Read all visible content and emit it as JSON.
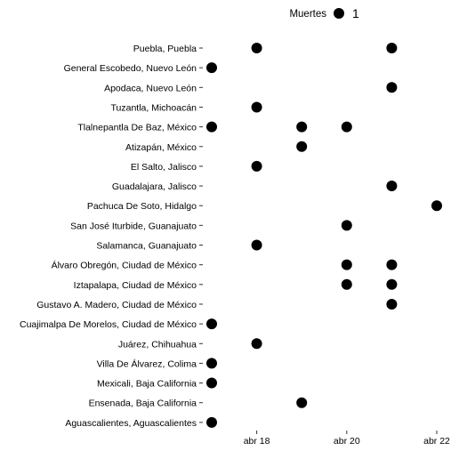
{
  "chart_data": {
    "type": "scatter",
    "legend": {
      "title": "Muertes",
      "entries": [
        "1"
      ],
      "position": "top"
    },
    "categories": [
      "Puebla, Puebla",
      "General Escobedo, Nuevo León",
      "Apodaca, Nuevo León",
      "Tuzantla, Michoacán",
      "Tlalnepantla De Baz, México",
      "Atizapán, México",
      "El Salto, Jalisco",
      "Guadalajara, Jalisco",
      "Pachuca De Soto, Hidalgo",
      "San José Iturbide, Guanajuato",
      "Salamanca, Guanajuato",
      "Álvaro Obregón, Ciudad de México",
      "Iztapalapa, Ciudad de México",
      "Gustavo A. Madero, Ciudad de México",
      "Cuajimalpa De Morelos, Ciudad de México",
      "Juárez, Chihuahua",
      "Villa De Álvarez, Colima",
      "Mexicali, Baja California",
      "Ensenada, Baja California",
      "Aguascalientes, Aguascalientes"
    ],
    "x_ticks": [
      {
        "value": "2021-04-18",
        "label": "abr 18"
      },
      {
        "value": "2021-04-20",
        "label": "abr 20"
      },
      {
        "value": "2021-04-22",
        "label": "abr 22"
      }
    ],
    "xlim": [
      "2021-04-17",
      "2021-04-22"
    ],
    "points": [
      {
        "city": "Puebla, Puebla",
        "date": "2021-04-18",
        "deaths": 1
      },
      {
        "city": "Puebla, Puebla",
        "date": "2021-04-21",
        "deaths": 1
      },
      {
        "city": "General Escobedo, Nuevo León",
        "date": "2021-04-17",
        "deaths": 1
      },
      {
        "city": "Apodaca, Nuevo León",
        "date": "2021-04-21",
        "deaths": 1
      },
      {
        "city": "Tuzantla, Michoacán",
        "date": "2021-04-18",
        "deaths": 1
      },
      {
        "city": "Tlalnepantla De Baz, México",
        "date": "2021-04-17",
        "deaths": 1
      },
      {
        "city": "Tlalnepantla De Baz, México",
        "date": "2021-04-19",
        "deaths": 1
      },
      {
        "city": "Tlalnepantla De Baz, México",
        "date": "2021-04-20",
        "deaths": 1
      },
      {
        "city": "Atizapán, México",
        "date": "2021-04-19",
        "deaths": 1
      },
      {
        "city": "El Salto, Jalisco",
        "date": "2021-04-18",
        "deaths": 1
      },
      {
        "city": "Guadalajara, Jalisco",
        "date": "2021-04-21",
        "deaths": 1
      },
      {
        "city": "Pachuca De Soto, Hidalgo",
        "date": "2021-04-22",
        "deaths": 1
      },
      {
        "city": "San José Iturbide, Guanajuato",
        "date": "2021-04-20",
        "deaths": 1
      },
      {
        "city": "Salamanca, Guanajuato",
        "date": "2021-04-18",
        "deaths": 1
      },
      {
        "city": "Álvaro Obregón, Ciudad de México",
        "date": "2021-04-20",
        "deaths": 1
      },
      {
        "city": "Álvaro Obregón, Ciudad de México",
        "date": "2021-04-21",
        "deaths": 1
      },
      {
        "city": "Iztapalapa, Ciudad de México",
        "date": "2021-04-20",
        "deaths": 1
      },
      {
        "city": "Iztapalapa, Ciudad de México",
        "date": "2021-04-21",
        "deaths": 1
      },
      {
        "city": "Gustavo A. Madero, Ciudad de México",
        "date": "2021-04-21",
        "deaths": 1
      },
      {
        "city": "Cuajimalpa De Morelos, Ciudad de México",
        "date": "2021-04-17",
        "deaths": 1
      },
      {
        "city": "Juárez, Chihuahua",
        "date": "2021-04-18",
        "deaths": 1
      },
      {
        "city": "Villa De Álvarez, Colima",
        "date": "2021-04-17",
        "deaths": 1
      },
      {
        "city": "Mexicali, Baja California",
        "date": "2021-04-17",
        "deaths": 1
      },
      {
        "city": "Ensenada, Baja California",
        "date": "2021-04-19",
        "deaths": 1
      },
      {
        "city": "Aguascalientes, Aguascalientes",
        "date": "2021-04-17",
        "deaths": 1
      }
    ],
    "grid": false,
    "point_color": "#000000"
  }
}
